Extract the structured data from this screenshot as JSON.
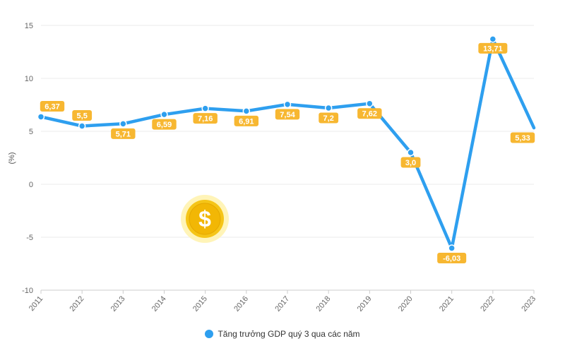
{
  "chart_data": {
    "type": "line",
    "x": [
      "2011",
      "2012",
      "2013",
      "2014",
      "2015",
      "2016",
      "2017",
      "2018",
      "2019",
      "2020",
      "2021",
      "2022",
      "2023"
    ],
    "series": [
      {
        "name": "Tăng trưởng GDP quý 3 qua các năm",
        "values": [
          6.37,
          5.5,
          5.71,
          6.59,
          7.16,
          6.91,
          7.54,
          7.2,
          7.62,
          3.0,
          -6.03,
          13.71,
          5.33
        ],
        "labels": [
          "6,37",
          "5,5",
          "5,71",
          "6,59",
          "7,16",
          "6,91",
          "7,54",
          "7,2",
          "7,62",
          "3,0",
          "-6,03",
          "13,71",
          "5,33"
        ]
      }
    ],
    "ylabel": "(%)",
    "ylim": [
      -10,
      15
    ],
    "yticks": [
      -10,
      -5,
      0,
      5,
      10,
      15
    ],
    "grid": true,
    "legend": "bottom-center"
  },
  "colors": {
    "line": "#2E9FEF",
    "label_bg": "#F7B731",
    "grid": "#EBEBEB",
    "axis": "#CCCCCC"
  },
  "icons": {
    "coin": "dollar-coin-icon"
  }
}
